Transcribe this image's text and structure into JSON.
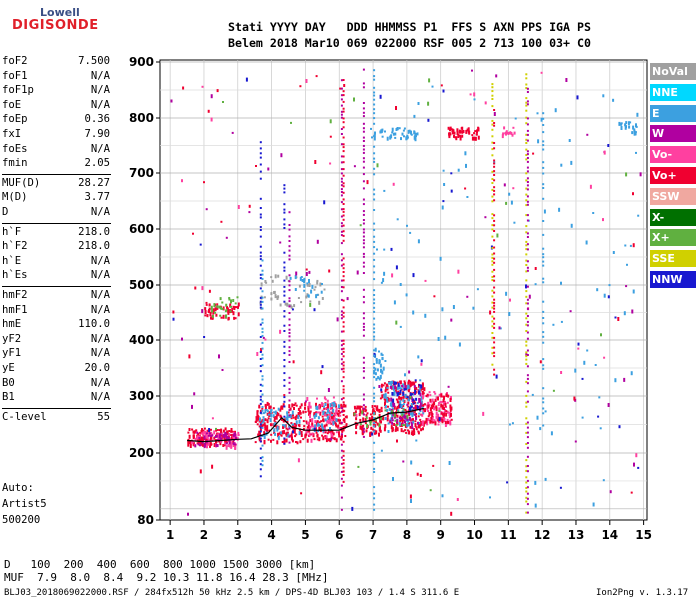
{
  "logo": {
    "top": "Lowell",
    "bottom": "DIGISONDE"
  },
  "header": {
    "line1": "Stati YYYY DAY   DDD HHMMSS P1  FFS S AXN PPS IGA PS",
    "line2": "Belem 2018 Mar10 069 022000 RSF 005 2 713 100 03+ C0"
  },
  "params": [
    {
      "name": "foF2",
      "value": "7.500"
    },
    {
      "name": "foF1",
      "value": "N/A"
    },
    {
      "name": "foF1p",
      "value": "N/A"
    },
    {
      "name": "foE",
      "value": "N/A"
    },
    {
      "name": "foEp",
      "value": "0.36"
    },
    {
      "name": "fxI",
      "value": "7.90"
    },
    {
      "name": "foEs",
      "value": "N/A"
    },
    {
      "name": "fmin",
      "value": "2.05"
    },
    {
      "name": "MUF(D)",
      "value": "28.27"
    },
    {
      "name": "M(D)",
      "value": "3.77"
    },
    {
      "name": "D",
      "value": "N/A"
    },
    {
      "name": "h`F",
      "value": "218.0"
    },
    {
      "name": "h`F2",
      "value": "218.0"
    },
    {
      "name": "h`E",
      "value": "N/A"
    },
    {
      "name": "h`Es",
      "value": "N/A"
    },
    {
      "name": "hmF2",
      "value": "N/A"
    },
    {
      "name": "hmF1",
      "value": "N/A"
    },
    {
      "name": "hmE",
      "value": "110.0"
    },
    {
      "name": "yF2",
      "value": "N/A"
    },
    {
      "name": "yF1",
      "value": "N/A"
    },
    {
      "name": "yE",
      "value": "20.0"
    },
    {
      "name": "B0",
      "value": "N/A"
    },
    {
      "name": "B1",
      "value": "N/A"
    },
    {
      "name": "C-level",
      "value": "55"
    }
  ],
  "auto": {
    "line1": "Auto:",
    "line2": "Artist5",
    "line3": "500200"
  },
  "legend": [
    {
      "label": "NoVal",
      "color": "#a0a0a0"
    },
    {
      "label": "NNE",
      "color": "#00d8ff"
    },
    {
      "label": "E",
      "color": "#3ca0e0"
    },
    {
      "label": "W",
      "color": "#b000a0"
    },
    {
      "label": "Vo-",
      "color": "#ff40a0"
    },
    {
      "label": "Vo+",
      "color": "#f00030"
    },
    {
      "label": "SSW",
      "color": "#f0a8a0"
    },
    {
      "label": "X-",
      "color": "#007000"
    },
    {
      "label": "X+",
      "color": "#60b040"
    },
    {
      "label": "SSE",
      "color": "#d0d000"
    },
    {
      "label": "NNW",
      "color": "#1818d0"
    }
  ],
  "bottom": {
    "d_line": "D   100  200  400  600  800 1000 1500 3000 [km]",
    "muf_line": "MUF  7.9  8.0  8.4  9.2 10.3 11.8 16.4 28.3 [MHz]",
    "file_line": "BLJ03_2018069022000.RSF / 284fx512h 50 kHz 2.5 km / DPS-4D BLJ03 103 / 1.4 S 311.6 E",
    "version": "Ion2Png v. 1.3.17"
  },
  "chart_data": {
    "type": "scatter",
    "title": "",
    "xlabel": "",
    "ylabel": "",
    "xlim": [
      0.7,
      15.1
    ],
    "ylim": [
      80,
      900
    ],
    "x_ticks": [
      "1",
      "2",
      "3",
      "4",
      "5",
      "6",
      "7",
      "8",
      "9",
      "10",
      "11",
      "12",
      "13",
      "14",
      "15"
    ],
    "y_ticks": [
      "80",
      "200",
      "300",
      "400",
      "500",
      "600",
      "700",
      "800",
      "900"
    ],
    "trace": {
      "x": [
        1.5,
        2.0,
        2.5,
        3.0,
        3.4,
        3.9,
        4.3,
        4.6,
        5.0,
        5.5,
        6.0,
        6.5,
        7.0,
        7.5,
        8.0,
        8.5
      ],
      "y": [
        222,
        220,
        222,
        224,
        225,
        235,
        262,
        245,
        240,
        240,
        240,
        252,
        258,
        270,
        272,
        278
      ]
    },
    "clusters": [
      {
        "color": "#f00030",
        "x": [
          1.5,
          2.9
        ],
        "y": [
          215,
          245
        ],
        "n": 160
      },
      {
        "color": "#ff40a0",
        "x": [
          1.6,
          3.0
        ],
        "y": [
          212,
          240
        ],
        "n": 60
      },
      {
        "color": "#b000a0",
        "x": [
          1.7,
          3.0
        ],
        "y": [
          215,
          240
        ],
        "n": 40
      },
      {
        "color": "#f00030",
        "x": [
          3.5,
          4.9
        ],
        "y": [
          220,
          290
        ],
        "n": 170
      },
      {
        "color": "#3ca0e0",
        "x": [
          3.6,
          4.8
        ],
        "y": [
          230,
          280
        ],
        "n": 45
      },
      {
        "color": "#f00030",
        "x": [
          4.9,
          6.2
        ],
        "y": [
          225,
          290
        ],
        "n": 160
      },
      {
        "color": "#ff40a0",
        "x": [
          5.0,
          6.0
        ],
        "y": [
          230,
          300
        ],
        "n": 60
      },
      {
        "color": "#3ca0e0",
        "x": [
          5.2,
          6.0
        ],
        "y": [
          240,
          290
        ],
        "n": 35
      },
      {
        "color": "#f00030",
        "x": [
          6.4,
          7.2
        ],
        "y": [
          235,
          285
        ],
        "n": 90
      },
      {
        "color": "#f00030",
        "x": [
          7.2,
          8.5
        ],
        "y": [
          235,
          330
        ],
        "n": 220
      },
      {
        "color": "#3ca0e0",
        "x": [
          7.3,
          8.5
        ],
        "y": [
          250,
          330
        ],
        "n": 80
      },
      {
        "color": "#b000a0",
        "x": [
          7.4,
          8.4
        ],
        "y": [
          245,
          320
        ],
        "n": 50
      },
      {
        "color": "#1818d0",
        "x": [
          7.5,
          8.4
        ],
        "y": [
          280,
          330
        ],
        "n": 30
      },
      {
        "color": "#ff40a0",
        "x": [
          8.4,
          9.3
        ],
        "y": [
          250,
          310
        ],
        "n": 80
      },
      {
        "color": "#f00030",
        "x": [
          8.5,
          9.3
        ],
        "y": [
          255,
          305
        ],
        "n": 60
      },
      {
        "color": "#60b040",
        "x": [
          6.4,
          8.0
        ],
        "y": [
          250,
          280
        ],
        "n": 25
      },
      {
        "color": "#f00030",
        "x": [
          2.0,
          3.0
        ],
        "y": [
          440,
          470
        ],
        "n": 50
      },
      {
        "color": "#60b040",
        "x": [
          2.2,
          3.0
        ],
        "y": [
          445,
          480
        ],
        "n": 25
      },
      {
        "color": "#a0a0a0",
        "x": [
          3.6,
          5.6
        ],
        "y": [
          460,
          520
        ],
        "n": 45
      },
      {
        "color": "#3ca0e0",
        "x": [
          4.5,
          5.5
        ],
        "y": [
          480,
          520
        ],
        "n": 20
      },
      {
        "color": "#3ca0e0",
        "x": [
          6.9,
          8.3
        ],
        "y": [
          765,
          785
        ],
        "n": 45
      },
      {
        "color": "#f00030",
        "x": [
          9.2,
          10.1
        ],
        "y": [
          765,
          785
        ],
        "n": 50
      },
      {
        "color": "#ff40a0",
        "x": [
          10.8,
          11.2
        ],
        "y": [
          770,
          785
        ],
        "n": 12
      },
      {
        "color": "#3ca0e0",
        "x": [
          14.2,
          14.8
        ],
        "y": [
          775,
          795
        ],
        "n": 20
      },
      {
        "color": "#3ca0e0",
        "x": [
          7.0,
          7.3
        ],
        "y": [
          330,
          390
        ],
        "n": 25
      },
      {
        "color": "#3ca0e0",
        "x": [
          7.0,
          14.9
        ],
        "y": [
          90,
          890
        ],
        "n": 110
      },
      {
        "color": "#b000a0",
        "x": [
          1.0,
          14.9
        ],
        "y": [
          90,
          890
        ],
        "n": 55
      },
      {
        "color": "#f00030",
        "x": [
          1.0,
          14.9
        ],
        "y": [
          90,
          890
        ],
        "n": 50
      },
      {
        "color": "#1818d0",
        "x": [
          1.0,
          14.9
        ],
        "y": [
          90,
          890
        ],
        "n": 40
      },
      {
        "color": "#60b040",
        "x": [
          1.0,
          14.9
        ],
        "y": [
          90,
          890
        ],
        "n": 20
      },
      {
        "color": "#ff40a0",
        "x": [
          1.0,
          14.9
        ],
        "y": [
          90,
          890
        ],
        "n": 35
      }
    ],
    "vertical_streaks": [
      {
        "x": 3.65,
        "y": [
          160,
          760
        ],
        "color": "#1818d0"
      },
      {
        "x": 3.7,
        "y": [
          180,
          560
        ],
        "color": "#3ca0e0"
      },
      {
        "x": 4.35,
        "y": [
          200,
          690
        ],
        "color": "#1818d0"
      },
      {
        "x": 4.5,
        "y": [
          220,
          640
        ],
        "color": "#b000a0"
      },
      {
        "x": 6.05,
        "y": [
          100,
          880
        ],
        "color": "#b000a0"
      },
      {
        "x": 6.1,
        "y": [
          150,
          880
        ],
        "color": "#f00030"
      },
      {
        "x": 6.7,
        "y": [
          230,
          890
        ],
        "color": "#b000a0"
      },
      {
        "x": 7.0,
        "y": [
          100,
          890
        ],
        "color": "#3ca0e0"
      },
      {
        "x": 10.5,
        "y": [
          350,
          880
        ],
        "color": "#d0d000"
      },
      {
        "x": 10.55,
        "y": [
          340,
          820
        ],
        "color": "#f00030"
      },
      {
        "x": 11.5,
        "y": [
          95,
          880
        ],
        "color": "#d0d000"
      },
      {
        "x": 11.55,
        "y": [
          95,
          860
        ],
        "color": "#b000a0"
      },
      {
        "x": 12.0,
        "y": [
          250,
          820
        ],
        "color": "#3ca0e0"
      }
    ]
  }
}
